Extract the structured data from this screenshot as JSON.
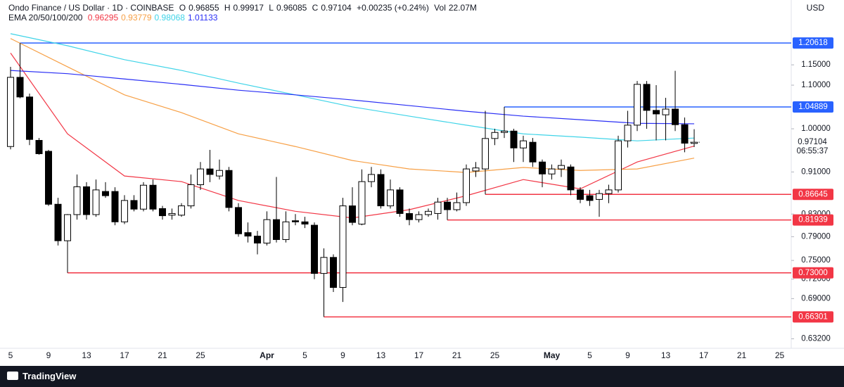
{
  "header": {
    "symbol": "Ondo Finance / US Dollar · 1D · COINBASE",
    "open_label": "O",
    "open": 0.96855,
    "high_label": "H",
    "high": 0.99917,
    "low_label": "L",
    "low": 0.96085,
    "close_label": "C",
    "close": 0.97104,
    "change": "+0.00235 (+0.24%)",
    "volume_label": "Vol",
    "volume": "22.07M",
    "ema_label": "EMA 20/50/100/200"
  },
  "currency": "USD",
  "brand": "TradingView",
  "chart_data": {
    "type": "candlestick",
    "log_scale": true,
    "grid": false,
    "ylim": [
      0.619,
      1.325
    ],
    "yticks": [
      {
        "value": 1.15,
        "label": "1.15000"
      },
      {
        "value": 1.1,
        "label": "1.10000"
      },
      {
        "value": 1.0,
        "label": "1.00000"
      },
      {
        "value": 0.91,
        "label": "0.91000"
      },
      {
        "value": 0.83,
        "label": "0.83000"
      },
      {
        "value": 0.79,
        "label": "0.79000"
      },
      {
        "value": 0.75,
        "label": "0.75000"
      },
      {
        "value": 0.72,
        "label": "0.72000"
      },
      {
        "value": 0.69,
        "label": "0.69000"
      },
      {
        "value": 0.632,
        "label": "0.63200"
      }
    ],
    "categories": [
      "5",
      null,
      null,
      null,
      "9",
      null,
      null,
      null,
      "13",
      null,
      null,
      null,
      "17",
      null,
      null,
      null,
      "21",
      null,
      null,
      null,
      "25",
      null,
      null,
      null,
      null,
      null,
      null,
      "Apr",
      null,
      null,
      null,
      "5",
      null,
      null,
      null,
      "9",
      null,
      null,
      null,
      "13",
      null,
      null,
      null,
      "17",
      null,
      null,
      null,
      "21",
      null,
      null,
      null,
      "25",
      null,
      null,
      null,
      null,
      null,
      "May",
      null,
      null,
      null,
      "5",
      null,
      null,
      null,
      "9",
      null,
      null,
      null,
      "13",
      null,
      null,
      null,
      "17",
      null,
      null,
      null,
      "21",
      null,
      null,
      null,
      "25"
    ],
    "open": [
      0.962,
      1.119,
      1.072,
      0.975,
      0.952,
      0.848,
      0.783,
      0.829,
      0.881,
      0.829,
      0.872,
      0.872,
      0.816,
      0.855,
      0.839,
      0.884,
      0.84,
      0.828,
      0.828,
      0.845,
      0.885,
      0.916,
      0.902,
      0.913,
      0.842,
      0.797,
      0.791,
      0.779,
      0.82,
      0.785,
      0.818,
      0.816,
      0.81,
      0.729,
      0.755,
      0.707,
      0.845,
      0.812,
      0.891,
      0.905,
      0.845,
      0.875,
      0.831,
      0.82,
      0.829,
      0.831,
      0.852,
      0.838,
      0.851,
      0.912,
      0.916,
      0.979,
      0.992,
      0.995,
      0.959,
      0.971,
      0.93,
      0.906,
      0.916,
      0.92,
      0.875,
      0.864,
      0.857,
      0.868,
      0.875,
      0.974,
      1.008,
      1.102,
      1.041,
      1.031,
      1.044,
      1.009,
      0.96855,
      null,
      null,
      null,
      null,
      null,
      null,
      null,
      null,
      null
    ],
    "high": [
      1.145,
      1.206,
      1.08,
      0.98,
      0.955,
      0.86,
      0.83,
      0.905,
      0.89,
      0.895,
      0.89,
      0.88,
      0.865,
      0.865,
      0.89,
      0.895,
      0.845,
      0.84,
      0.85,
      0.905,
      0.93,
      0.955,
      0.935,
      0.92,
      0.85,
      0.815,
      0.8,
      0.835,
      0.9,
      0.835,
      0.83,
      0.825,
      0.815,
      0.77,
      0.76,
      0.86,
      0.88,
      0.915,
      0.92,
      0.915,
      0.895,
      0.88,
      0.84,
      0.835,
      0.84,
      0.86,
      0.86,
      0.87,
      0.925,
      0.93,
      1.04,
      1.0,
      1.049,
      1.0,
      0.985,
      0.98,
      0.935,
      0.925,
      0.935,
      0.925,
      0.88,
      0.875,
      0.875,
      0.885,
      0.985,
      1.04,
      1.11,
      1.11,
      1.1,
      1.07,
      1.135,
      1.025,
      0.99917,
      null,
      null,
      null,
      null,
      null,
      null,
      null,
      null,
      null
    ],
    "low": [
      0.956,
      1.069,
      0.965,
      0.945,
      0.845,
      0.775,
      0.73,
      0.82,
      0.82,
      0.825,
      0.86,
      0.81,
      0.812,
      0.835,
      0.835,
      0.835,
      0.82,
      0.82,
      0.825,
      0.84,
      0.875,
      0.89,
      0.895,
      0.835,
      0.79,
      0.78,
      0.76,
      0.775,
      0.78,
      0.78,
      0.81,
      0.805,
      0.72,
      0.66301,
      0.7,
      0.685,
      0.81,
      0.81,
      0.88,
      0.84,
      0.84,
      0.825,
      0.81,
      0.815,
      0.825,
      0.82,
      0.81939,
      0.835,
      0.845,
      0.9,
      0.86645,
      0.965,
      0.98,
      0.93,
      0.93,
      0.92,
      0.88,
      0.895,
      0.9,
      0.865,
      0.85,
      0.845,
      0.825,
      0.85,
      0.87,
      0.96,
      0.995,
      1.0,
      0.975,
      0.975,
      0.995,
      0.95,
      0.96085,
      null,
      null,
      null,
      null,
      null,
      null,
      null,
      null,
      null
    ],
    "close": [
      1.119,
      1.072,
      0.977,
      0.947,
      0.848,
      0.783,
      0.829,
      0.881,
      0.829,
      0.875,
      0.864,
      0.816,
      0.855,
      0.839,
      0.884,
      0.839,
      0.827,
      0.831,
      0.845,
      0.885,
      0.916,
      0.905,
      0.913,
      0.842,
      0.795,
      0.791,
      0.779,
      0.82,
      0.785,
      0.816,
      0.816,
      0.812,
      0.729,
      0.755,
      0.707,
      0.845,
      0.815,
      0.891,
      0.905,
      0.845,
      0.875,
      0.831,
      0.82,
      0.829,
      0.835,
      0.852,
      0.838,
      0.851,
      0.916,
      0.918,
      0.979,
      0.992,
      0.995,
      0.959,
      0.974,
      0.93,
      0.906,
      0.916,
      0.923,
      0.875,
      0.857,
      0.855,
      0.868,
      0.875,
      0.974,
      1.008,
      1.102,
      1.041,
      1.033,
      1.044,
      1.009,
      0.969,
      0.97104,
      null,
      null,
      null,
      null,
      null,
      null,
      null,
      null,
      null
    ],
    "up_color": "#ffffff",
    "down_color": "#000000",
    "series": [
      {
        "color": "#f23645",
        "last": 0.96295,
        "x": [
          0,
          6,
          12,
          18,
          24,
          30,
          36,
          42,
          48,
          54,
          60,
          66,
          72
        ],
        "values": [
          1.18,
          0.989,
          0.902,
          0.891,
          0.855,
          0.835,
          0.823,
          0.838,
          0.864,
          0.895,
          0.877,
          0.93,
          0.963
        ]
      },
      {
        "color": "#f7a046",
        "last": 0.93779,
        "x": [
          0,
          6,
          12,
          18,
          24,
          30,
          36,
          42,
          48,
          54,
          60,
          66,
          72
        ],
        "values": [
          1.218,
          1.145,
          1.077,
          1.036,
          0.989,
          0.962,
          0.933,
          0.916,
          0.909,
          0.919,
          0.913,
          0.916,
          0.938
        ]
      },
      {
        "color": "#3fd4e8",
        "last": 0.98068,
        "x": [
          0,
          6,
          12,
          18,
          24,
          30,
          36,
          42,
          48,
          54,
          60,
          66,
          72
        ],
        "values": [
          1.231,
          1.199,
          1.163,
          1.136,
          1.105,
          1.077,
          1.049,
          1.028,
          1.008,
          0.989,
          0.982,
          0.974,
          0.98
        ]
      },
      {
        "color": "#2a2ff5",
        "last": 1.01133,
        "x": [
          0,
          6,
          12,
          18,
          24,
          30,
          36,
          42,
          48,
          54,
          60,
          66,
          72
        ],
        "values": [
          1.136,
          1.128,
          1.115,
          1.102,
          1.088,
          1.077,
          1.065,
          1.052,
          1.039,
          1.028,
          1.02,
          1.012,
          1.011
        ]
      }
    ],
    "levels": [
      {
        "value": 1.20618,
        "label": "1.20618",
        "from": 1,
        "color": "#2962ff"
      },
      {
        "value": 1.04889,
        "label": "1.04889",
        "from": 52,
        "color": "#2962ff"
      },
      {
        "value": 0.86645,
        "label": "0.86645",
        "from": 50,
        "color": "#f23645"
      },
      {
        "value": 0.81939,
        "label": "0.81939",
        "from": 46,
        "color": "#f23645"
      },
      {
        "value": 0.73,
        "label": "0.73000",
        "from": 6,
        "color": "#f23645"
      },
      {
        "value": 0.66301,
        "label": "0.66301",
        "from": 33,
        "color": "#f23645"
      }
    ],
    "last_price": {
      "value": 0.97104,
      "label": "0.97104",
      "countdown": "06:55:37"
    }
  }
}
